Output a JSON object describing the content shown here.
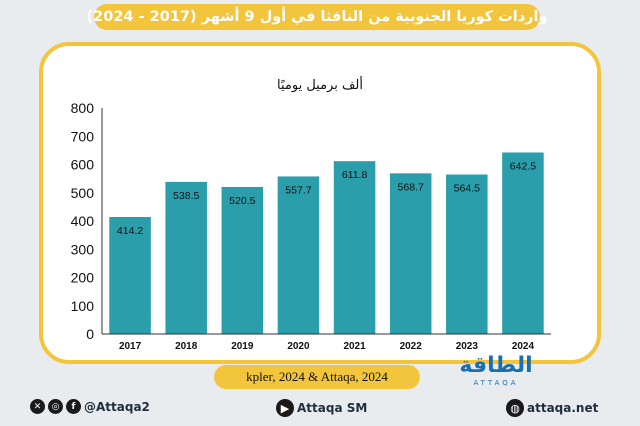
{
  "header": {
    "title": "واردات كوريا الجنوبية من النافثا في أول 9 أشهر  (2017 - 2024)"
  },
  "chart_data": {
    "type": "bar",
    "title": "ألف برميل يوميًا",
    "categories": [
      "2017",
      "2018",
      "2019",
      "2020",
      "2021",
      "2022",
      "2023",
      "2024"
    ],
    "values": [
      414.2,
      538.5,
      520.5,
      557.7,
      611.8,
      568.7,
      564.5,
      642.5
    ],
    "value_labels": [
      "414.2",
      "538.5",
      "520.5",
      "557.7",
      "611.8",
      "568.7",
      "564.5",
      "642.5"
    ],
    "ylim": [
      0,
      800
    ],
    "yticks": [
      "0",
      "100",
      "200",
      "300",
      "400",
      "500",
      "600",
      "700",
      "800"
    ],
    "bar_color": "#2a9eaa",
    "grid": false
  },
  "source": "kpler, 2024 & Attaqa, 2024",
  "logo": {
    "text": "الطاقة",
    "sub": "ATTAQA"
  },
  "footer": {
    "social_handle": "@Attaqa2",
    "youtube": "Attaqa SM",
    "website": "attaqa.net"
  },
  "colors": {
    "accent": "#f2c53d",
    "bar": "#2a9eaa",
    "brand": "#1a6fb3"
  }
}
